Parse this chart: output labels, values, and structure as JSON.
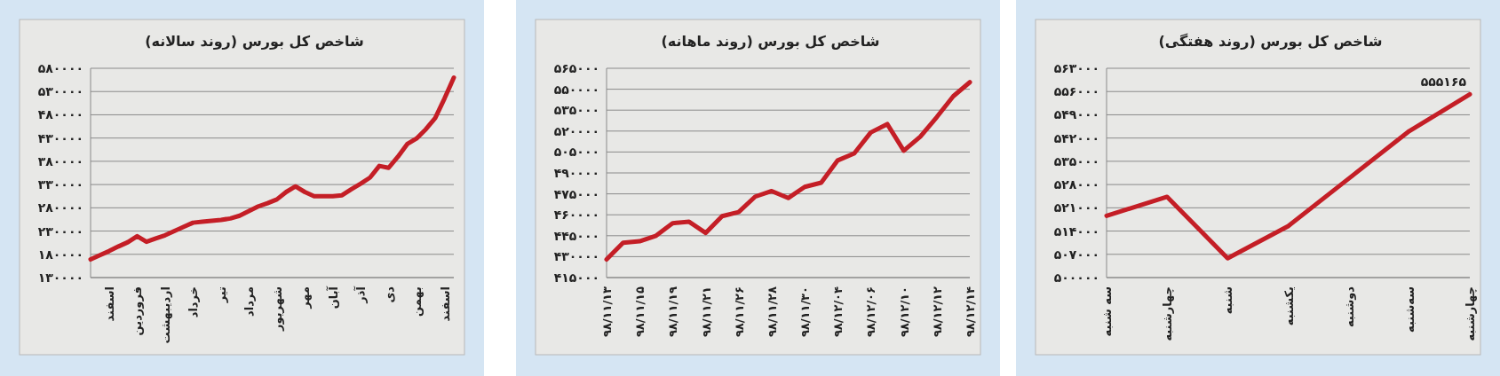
{
  "chart_data": [
    {
      "type": "line",
      "title": "شاخص کل بورس (روند سالانه)",
      "color": "#c41e26",
      "grid": "y",
      "categories": [
        null,
        null,
        "اسفند",
        null,
        null,
        "فروردین",
        null,
        null,
        "اردیبهشت",
        null,
        null,
        "خرداد",
        null,
        null,
        "تیر",
        null,
        null,
        "مرداد",
        null,
        null,
        "شهریور",
        null,
        null,
        "مهر",
        null,
        null,
        "آبان",
        null,
        null,
        "آذر",
        null,
        null,
        "دی",
        null,
        null,
        "بهمن",
        null,
        null,
        "اسفند",
        null
      ],
      "values": [
        169000,
        178000,
        187000,
        197000,
        206000,
        219000,
        207000,
        214000,
        221000,
        230000,
        239000,
        248000,
        250000,
        252000,
        254000,
        257000,
        263000,
        273000,
        283000,
        290000,
        298000,
        314000,
        326000,
        314000,
        305000,
        305000,
        305000,
        307000,
        320000,
        332000,
        345000,
        370000,
        366000,
        390000,
        417000,
        429000,
        449000,
        473000,
        515000,
        560000
      ],
      "ylim": [
        130000,
        580000
      ],
      "yticks": [
        {
          "value": 130000,
          "label": "۱۳۰۰۰۰"
        },
        {
          "value": 180000,
          "label": "۱۸۰۰۰۰"
        },
        {
          "value": 230000,
          "label": "۲۳۰۰۰۰"
        },
        {
          "value": 280000,
          "label": "۲۸۰۰۰۰"
        },
        {
          "value": 330000,
          "label": "۳۳۰۰۰۰"
        },
        {
          "value": 380000,
          "label": "۳۸۰۰۰۰"
        },
        {
          "value": 430000,
          "label": "۴۳۰۰۰۰"
        },
        {
          "value": 480000,
          "label": "۴۸۰۰۰۰"
        },
        {
          "value": 530000,
          "label": "۵۳۰۰۰۰"
        },
        {
          "value": 580000,
          "label": "۵۸۰۰۰۰"
        }
      ]
    },
    {
      "type": "line",
      "title": "شاخص کل بورس (روند ماهانه)",
      "color": "#c41e26",
      "grid": "y",
      "categories": [
        "۹۸/۱۱/۱۳",
        null,
        "۹۸/۱۱/۱۵",
        null,
        "۹۸/۱۱/۱۹",
        null,
        "۹۸/۱۱/۲۱",
        null,
        "۹۸/۱۱/۲۶",
        null,
        "۹۸/۱۱/۲۸",
        null,
        "۹۸/۱۱/۳۰",
        null,
        "۹۸/۱۲/۰۴",
        null,
        "۹۸/۱۲/۰۶",
        null,
        "۹۸/۱۲/۱۰",
        null,
        "۹۸/۱۲/۱۲",
        null,
        "۹۸/۱۲/۱۴"
      ],
      "values": [
        428000,
        440000,
        441000,
        445000,
        454000,
        455000,
        447000,
        459000,
        462000,
        473000,
        477000,
        472000,
        480000,
        483000,
        499000,
        504000,
        519000,
        525000,
        506000,
        516000,
        530000,
        545000,
        555000
      ],
      "ylim": [
        415000,
        565000
      ],
      "yticks": [
        {
          "value": 415000,
          "label": "۴۱۵۰۰۰"
        },
        {
          "value": 430000,
          "label": "۴۳۰۰۰۰"
        },
        {
          "value": 445000,
          "label": "۴۴۵۰۰۰"
        },
        {
          "value": 460000,
          "label": "۴۶۰۰۰۰"
        },
        {
          "value": 475000,
          "label": "۴۷۵۰۰۰"
        },
        {
          "value": 490000,
          "label": "۴۹۰۰۰۰"
        },
        {
          "value": 505000,
          "label": "۵۰۵۰۰۰"
        },
        {
          "value": 520000,
          "label": "۵۲۰۰۰۰"
        },
        {
          "value": 535000,
          "label": "۵۳۵۰۰۰"
        },
        {
          "value": 550000,
          "label": "۵۵۰۰۰۰"
        },
        {
          "value": 565000,
          "label": "۵۶۵۰۰۰"
        }
      ]
    },
    {
      "type": "line",
      "title": "شاخص کل بورس (روند هفتگی)",
      "color": "#c41e26",
      "grid": "y",
      "categories": [
        "سه شنبه",
        "چهارشنبه",
        "شنبه",
        "یکشنبه",
        "دوشنبه",
        "سه‌شنبه",
        "چهارشنبه"
      ],
      "values": [
        518600,
        524300,
        505800,
        515500,
        529800,
        544100,
        555165
      ],
      "annotations": [
        "۵۵۵۱۶۵"
      ],
      "ylim": [
        500000,
        563000
      ],
      "yticks": [
        {
          "value": 500000,
          "label": "۵۰۰۰۰۰"
        },
        {
          "value": 507000,
          "label": "۵۰۷۰۰۰"
        },
        {
          "value": 514000,
          "label": "۵۱۴۰۰۰"
        },
        {
          "value": 521000,
          "label": "۵۲۱۰۰۰"
        },
        {
          "value": 528000,
          "label": "۵۲۸۰۰۰"
        },
        {
          "value": 535000,
          "label": "۵۳۵۰۰۰"
        },
        {
          "value": 542000,
          "label": "۵۴۲۰۰۰"
        },
        {
          "value": 549000,
          "label": "۵۴۹۰۰۰"
        },
        {
          "value": 556000,
          "label": "۵۵۶۰۰۰"
        },
        {
          "value": 563000,
          "label": "۵۶۳۰۰۰"
        }
      ]
    }
  ]
}
